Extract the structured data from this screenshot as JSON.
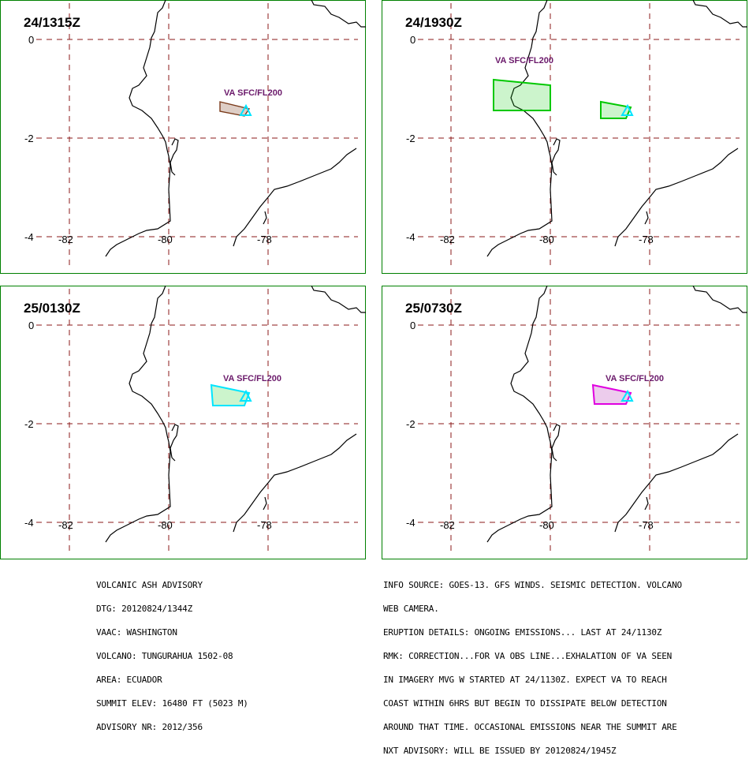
{
  "panels": [
    {
      "time": "24/1315Z",
      "va_label": "VA SFC/FL200",
      "polygon_color": "#7a3a1a",
      "polygon_fill": "#7a3a1a",
      "summit_color": "#00e5ff"
    },
    {
      "time": "24/1930Z",
      "va_label": "VA SFC/FL200",
      "polygon_color": "#00c800",
      "polygon_fill": "#00c800",
      "summit_color": "#00e5ff"
    },
    {
      "time": "25/0130Z",
      "va_label": "VA SFC/FL200",
      "polygon_color": "#00e5ff",
      "polygon_fill": "#00c800",
      "summit_color": "#00e5ff"
    },
    {
      "time": "25/0730Z",
      "va_label": "VA SFC/FL200",
      "polygon_color": "#e000e0",
      "polygon_fill": "#a000a0",
      "summit_color": "#00e5ff"
    }
  ],
  "axis": {
    "lat_ticks": [
      "0",
      "-2",
      "-4"
    ],
    "lon_ticks": [
      "-82",
      "-80",
      "-78"
    ]
  },
  "colors": {
    "frame": "#008000",
    "grid": "#8b1a1a",
    "coastline": "#000000",
    "label_text": "#6b1a6b"
  },
  "advisory_left": [
    "VOLCANIC ASH ADVISORY",
    "DTG: 20120824/1344Z",
    "VAAC: WASHINGTON",
    "VOLCANO: TUNGURAHUA 1502-08",
    "AREA: ECUADOR",
    "SUMMIT ELEV: 16480 FT (5023 M)",
    "ADVISORY NR: 2012/356"
  ],
  "advisory_right": [
    "INFO SOURCE: GOES-13. GFS WINDS. SEISMIC DETECTION. VOLCANO",
    "WEB CAMERA.",
    "ERUPTION DETAILS: ONGOING EMISSIONS... LAST AT 24/1130Z",
    "RMK: CORRECTION...FOR VA OBS LINE...EXHALATION OF VA SEEN",
    "IN IMAGERY MVG W STARTED AT 24/1130Z. EXPECT VA TO REACH",
    "COAST WITHIN 6HRS BUT BEGIN TO DISSIPATE BELOW DETECTION",
    "AROUND THAT TIME. OCCASIONAL EMISSIONS NEAR THE SUMMIT ARE",
    "NXT ADVISORY: WILL BE ISSUED BY 20120824/1945Z"
  ]
}
